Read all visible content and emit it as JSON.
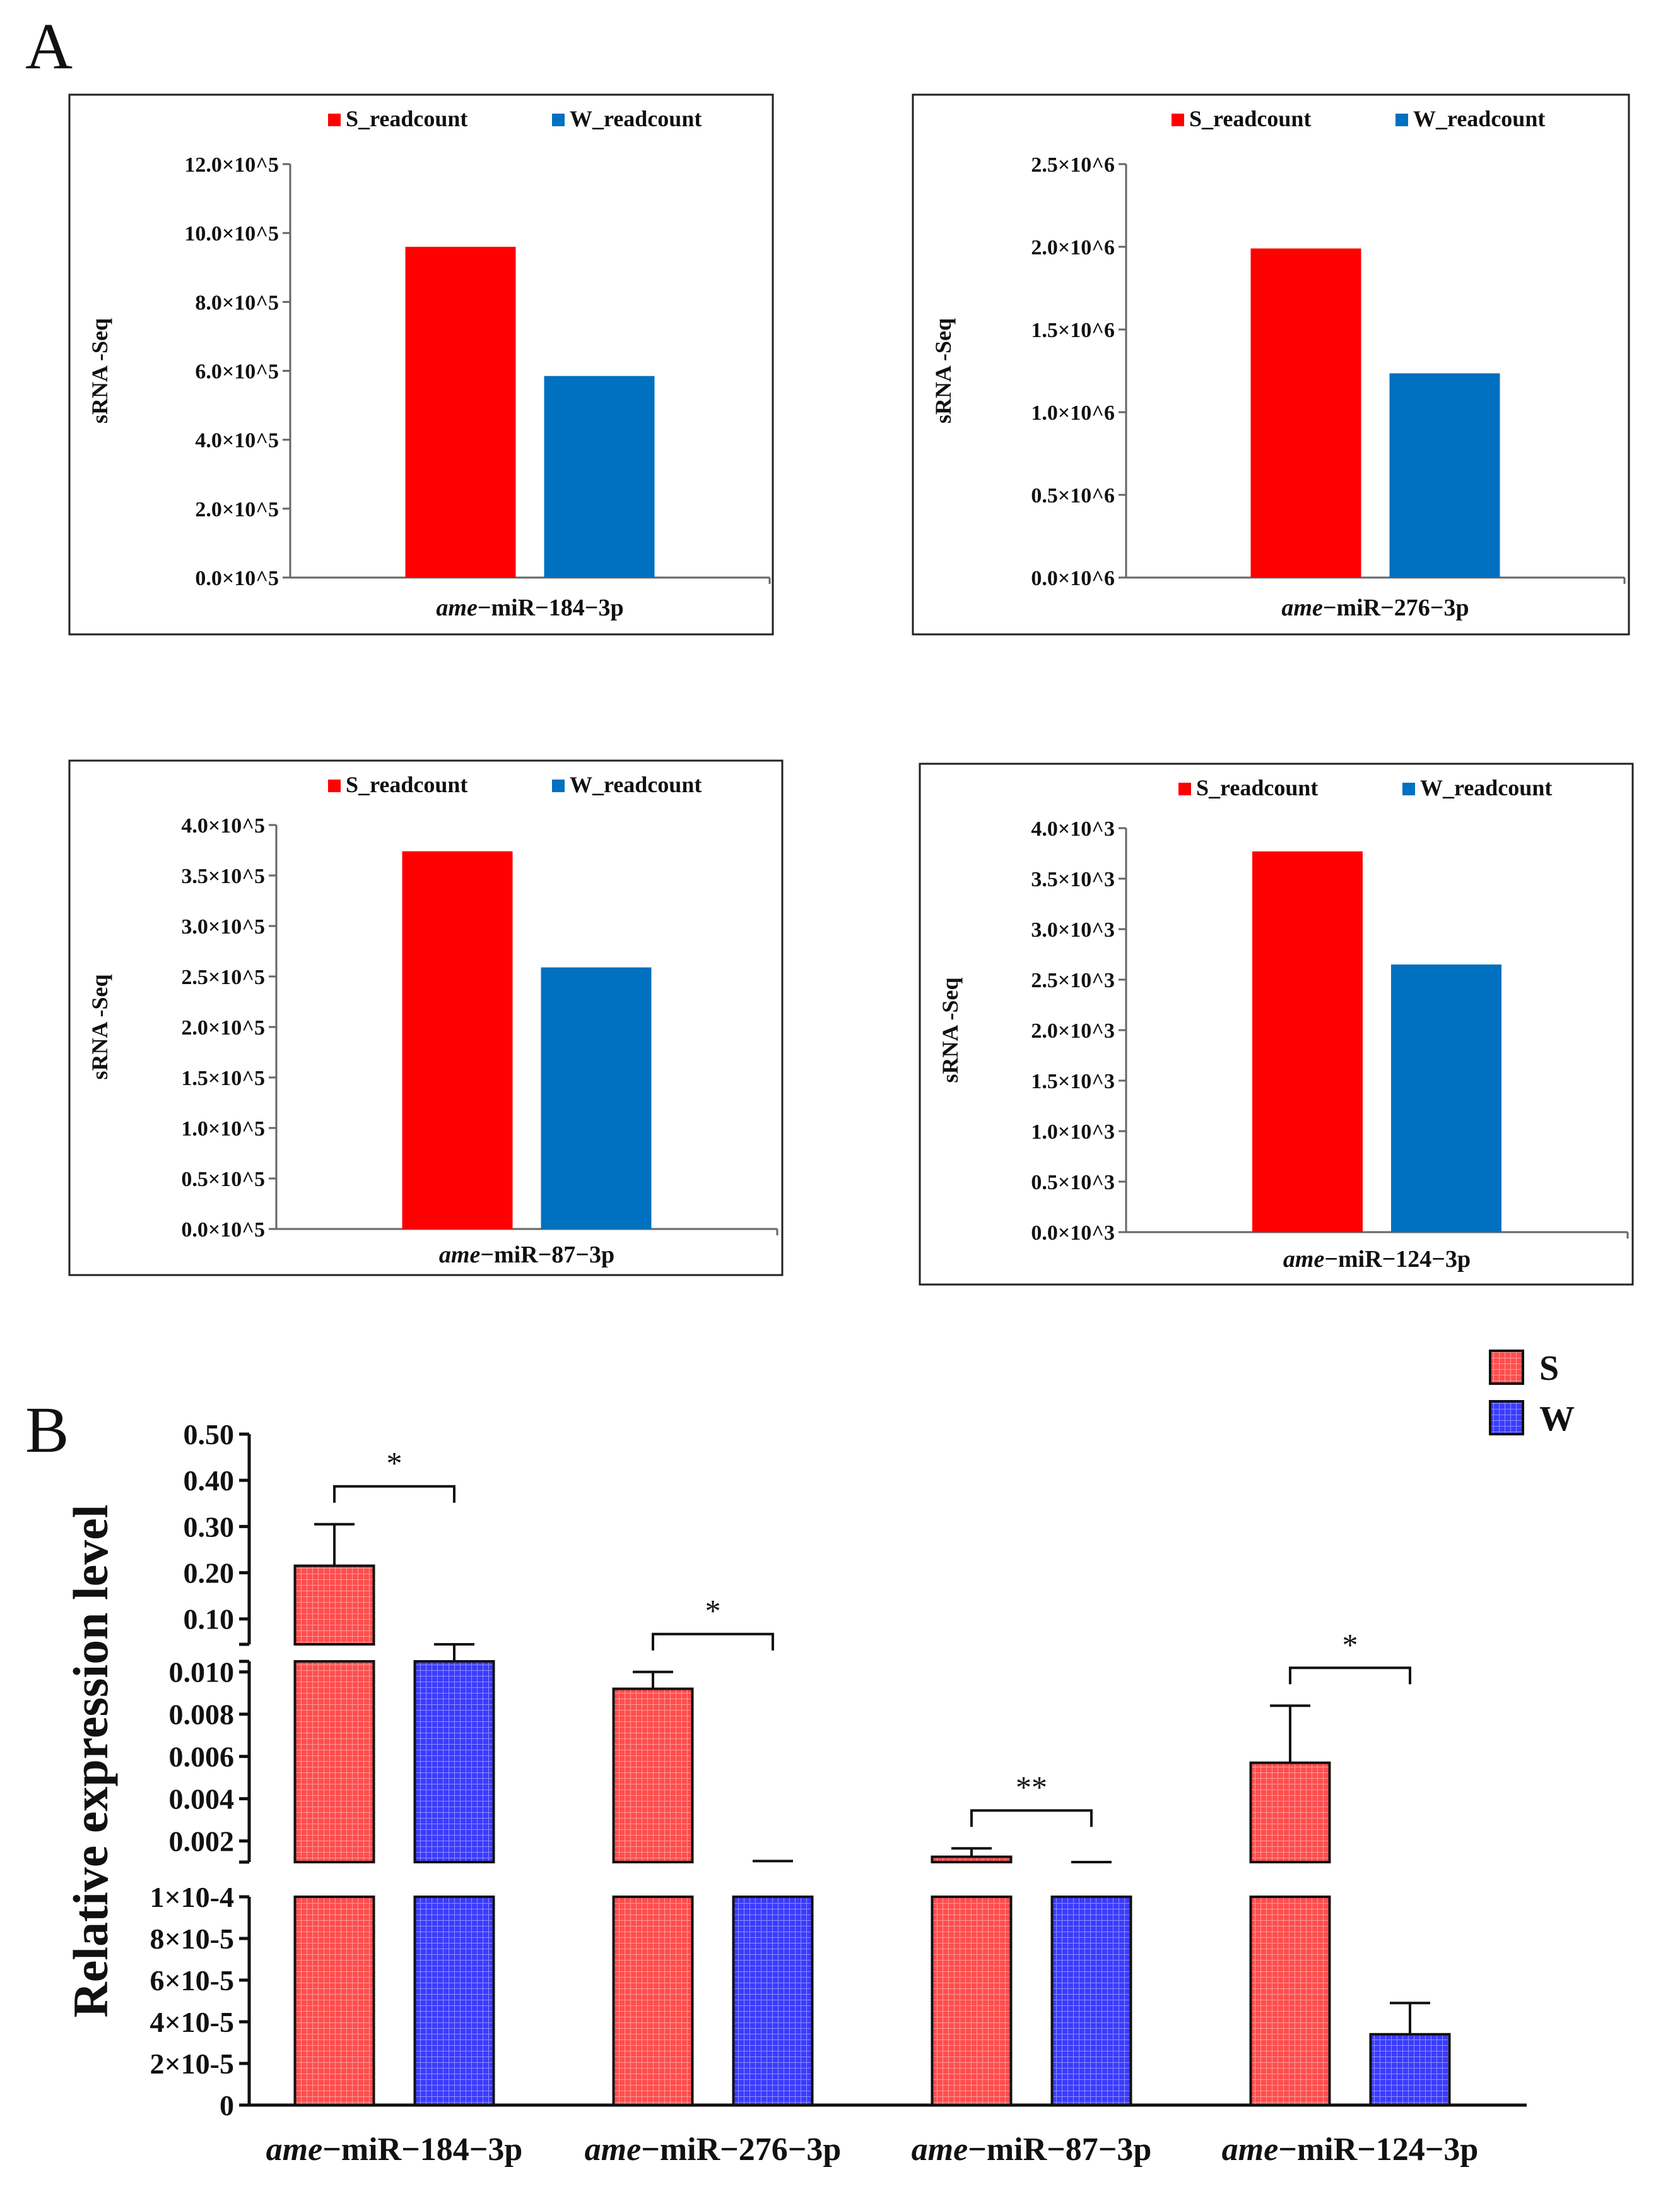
{
  "panel_labels": {
    "a": "A",
    "b": "B"
  },
  "colors": {
    "s_red": "#ff0000",
    "w_blue": "#0070c0",
    "b_s_fill": "#ff4d4d",
    "b_w_fill": "#3b3bff"
  },
  "chart_data": [
    {
      "type": "bar",
      "panel": "A",
      "title": "",
      "ylabel": "sRNA -Seq",
      "xlabel_italic": "ame",
      "xlabel_rest": "−miR−184−3p",
      "legend": [
        "S_readcount",
        "W_readcount"
      ],
      "series": [
        {
          "name": "S_readcount",
          "values": [
            960000
          ]
        },
        {
          "name": "W_readcount",
          "values": [
            585000
          ]
        }
      ],
      "ylim": [
        0,
        1200000
      ],
      "ytick_values": [
        0,
        200000,
        400000,
        600000,
        800000,
        1000000,
        1200000
      ],
      "ytick_labels": [
        "0.0×10^5",
        "2.0×10^5",
        "4.0×10^5",
        "6.0×10^5",
        "8.0×10^5",
        "10.0×10^5",
        "12.0×10^5"
      ]
    },
    {
      "type": "bar",
      "panel": "A",
      "title": "",
      "ylabel": "sRNA -Seq",
      "xlabel_italic": "ame",
      "xlabel_rest": "−miR−276−3p",
      "legend": [
        "S_readcount",
        "W_readcount"
      ],
      "series": [
        {
          "name": "S_readcount",
          "values": [
            1990000
          ]
        },
        {
          "name": "W_readcount",
          "values": [
            1235000
          ]
        }
      ],
      "ylim": [
        0,
        2500000
      ],
      "ytick_values": [
        0,
        500000,
        1000000,
        1500000,
        2000000,
        2500000
      ],
      "ytick_labels": [
        "0.0×10^6",
        "0.5×10^6",
        "1.0×10^6",
        "1.5×10^6",
        "2.0×10^6",
        "2.5×10^6"
      ]
    },
    {
      "type": "bar",
      "panel": "A",
      "title": "",
      "ylabel": "sRNA -Seq",
      "xlabel_italic": "ame",
      "xlabel_rest": "−miR−87−3p",
      "legend": [
        "S_readcount",
        "W_readcount"
      ],
      "series": [
        {
          "name": "S_readcount",
          "values": [
            374000
          ]
        },
        {
          "name": "W_readcount",
          "values": [
            259000
          ]
        }
      ],
      "ylim": [
        0,
        400000
      ],
      "ytick_values": [
        0,
        50000,
        100000,
        150000,
        200000,
        250000,
        300000,
        350000,
        400000
      ],
      "ytick_labels": [
        "0.0×10^5",
        "0.5×10^5",
        "1.0×10^5",
        "1.5×10^5",
        "2.0×10^5",
        "2.5×10^5",
        "3.0×10^5",
        "3.5×10^5",
        "4.0×10^5"
      ]
    },
    {
      "type": "bar",
      "panel": "A",
      "title": "",
      "ylabel": "sRNA -Seq",
      "xlabel_italic": "ame",
      "xlabel_rest": "−miR−124−3p",
      "legend": [
        "S_readcount",
        "W_readcount"
      ],
      "series": [
        {
          "name": "S_readcount",
          "values": [
            3770
          ]
        },
        {
          "name": "W_readcount",
          "values": [
            2650
          ]
        }
      ],
      "ylim": [
        0,
        4000
      ],
      "ytick_values": [
        0,
        500,
        1000,
        1500,
        2000,
        2500,
        3000,
        3500,
        4000
      ],
      "ytick_labels": [
        "0.0×10^3",
        "0.5×10^3",
        "1.0×10^3",
        "1.5×10^3",
        "2.0×10^3",
        "2.5×10^3",
        "3.0×10^3",
        "3.5×10^3",
        "4.0×10^3"
      ]
    },
    {
      "type": "bar",
      "panel": "B",
      "title": "",
      "ylabel": "Relative expression level",
      "xlabel": "",
      "legend": [
        "S",
        "W"
      ],
      "categories": [
        {
          "italic": "ame",
          "rest": "−miR−184−3p"
        },
        {
          "italic": "ame",
          "rest": "−miR−276−3p"
        },
        {
          "italic": "ame",
          "rest": "−miR−87−3p"
        },
        {
          "italic": "ame",
          "rest": "−miR−124−3p"
        }
      ],
      "series": [
        {
          "name": "S",
          "values": [
            0.215,
            0.0092,
            0.00125,
            0.0057
          ],
          "errors": [
            0.09,
            0.0008,
            0.0004,
            0.0027
          ]
        },
        {
          "name": "W",
          "values": [
            0.0105,
            0.00085,
            0.00012,
            3.4e-05
          ],
          "errors": [
            0.0003,
            0.0002,
            2e-05,
            1.5e-05
          ]
        }
      ],
      "significance": [
        "*",
        "*",
        "**",
        "*"
      ],
      "y_axis_broken": true,
      "segments": [
        {
          "range": [
            0,
            0.0001
          ],
          "ticks": [
            0,
            2e-05,
            4e-05,
            6e-05,
            8e-05,
            0.0001
          ],
          "labels": [
            "0",
            "2×10-5",
            "4×10-5",
            "6×10-5",
            "8×10-5",
            "1×10-4"
          ]
        },
        {
          "range": [
            0.001,
            0.0105
          ],
          "ticks": [
            0.002,
            0.004,
            0.006,
            0.008,
            0.01
          ],
          "labels": [
            "0.002",
            "0.004",
            "0.006",
            "0.008",
            "0.010"
          ]
        },
        {
          "range": [
            0.045,
            0.5
          ],
          "ticks": [
            0.1,
            0.2,
            0.3,
            0.4,
            0.5
          ],
          "labels": [
            "0.10",
            "0.20",
            "0.30",
            "0.40",
            "0.50"
          ]
        }
      ]
    }
  ]
}
